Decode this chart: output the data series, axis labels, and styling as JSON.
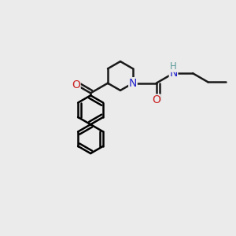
{
  "bg_color": "#ebebeb",
  "atom_colors": {
    "C": "#1a1a1a",
    "N": "#2222cc",
    "O": "#cc2222",
    "H": "#5a9a9a"
  },
  "bond_color": "#1a1a1a",
  "bond_width": 1.8,
  "font_size_atoms": 10,
  "font_size_H": 8.5,
  "ring_r": 0.62,
  "pip_r": 0.62
}
